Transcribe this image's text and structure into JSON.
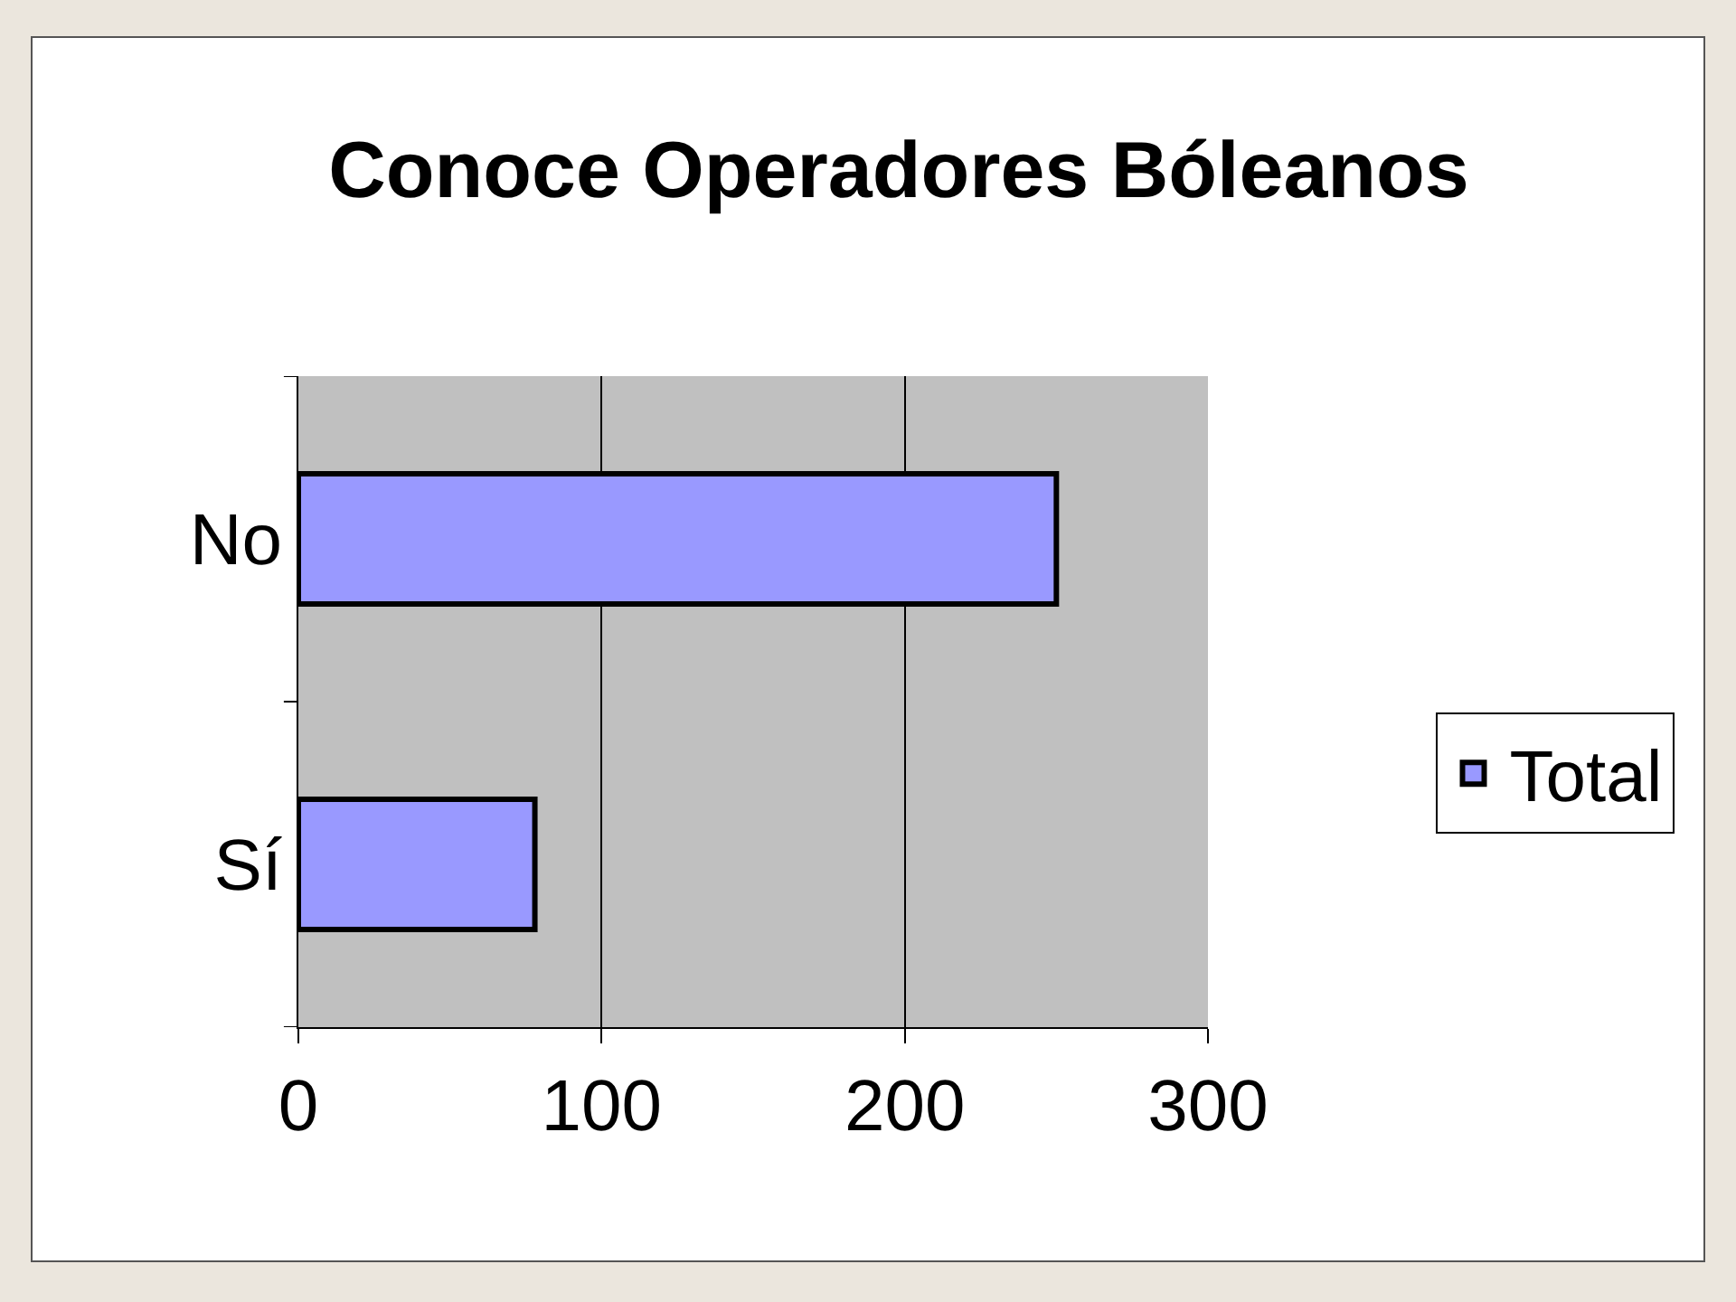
{
  "chart_data": {
    "type": "bar",
    "orientation": "horizontal",
    "title": "Conoce Operadores Bóleanos",
    "categories": [
      "No",
      "Sí"
    ],
    "series": [
      {
        "name": "Total",
        "color": "#9999ff",
        "values": [
          250,
          78
        ]
      }
    ],
    "xlim": [
      0,
      300
    ],
    "xticks": [
      0,
      100,
      200,
      300
    ],
    "grid": "x",
    "legend": "right"
  }
}
